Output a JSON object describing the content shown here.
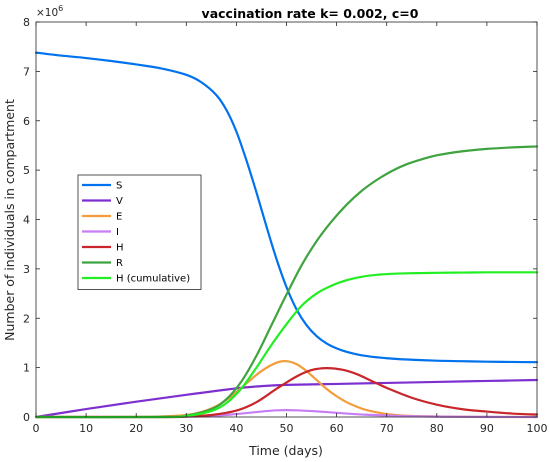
{
  "chart_data": {
    "type": "line",
    "title": "vaccination rate k= 0.002, c=0",
    "xlabel": "Time (days)",
    "ylabel": "Number of individuals in compartment",
    "y_exponent_label": "×10",
    "y_exponent_power": "6",
    "xlim": [
      0,
      100
    ],
    "ylim": [
      0,
      8
    ],
    "y_scale_factor": 1000000,
    "x_ticks": [
      0,
      10,
      20,
      30,
      40,
      50,
      60,
      70,
      80,
      90,
      100
    ],
    "y_ticks": [
      0,
      1,
      2,
      3,
      4,
      5,
      6,
      7,
      8
    ],
    "x_tick_labels": [
      "0",
      "10",
      "20",
      "30",
      "40",
      "50",
      "60",
      "70",
      "80",
      "90",
      "100"
    ],
    "y_tick_labels": [
      "0",
      "1",
      "2",
      "3",
      "4",
      "5",
      "6",
      "7",
      "8"
    ],
    "grid": false,
    "legend_position": "middle-left",
    "series": [
      {
        "name": "S",
        "color": "#0072EE",
        "x": [
          0,
          5,
          10,
          15,
          20,
          25,
          30,
          33,
          36,
          38,
          40,
          42,
          44,
          46,
          48,
          50,
          52,
          54,
          56,
          58,
          60,
          62,
          65,
          70,
          75,
          80,
          85,
          90,
          95,
          100
        ],
        "y": [
          7.38,
          7.32,
          7.27,
          7.21,
          7.14,
          7.06,
          6.93,
          6.78,
          6.52,
          6.22,
          5.78,
          5.2,
          4.55,
          3.86,
          3.2,
          2.63,
          2.18,
          1.86,
          1.64,
          1.49,
          1.39,
          1.32,
          1.25,
          1.19,
          1.16,
          1.14,
          1.13,
          1.12,
          1.115,
          1.11
        ]
      },
      {
        "name": "V",
        "color": "#7E2FD0",
        "x": [
          0,
          10,
          20,
          30,
          40,
          45,
          50,
          60,
          70,
          80,
          90,
          100
        ],
        "y": [
          0.0,
          0.16,
          0.31,
          0.45,
          0.58,
          0.625,
          0.65,
          0.67,
          0.69,
          0.71,
          0.73,
          0.75
        ]
      },
      {
        "name": "E",
        "color": "#F39C3C",
        "x": [
          0,
          20,
          25,
          30,
          33,
          36,
          39,
          42,
          45,
          48,
          50,
          52,
          54,
          56,
          58,
          60,
          62,
          64,
          66,
          70,
          75,
          80,
          90,
          100
        ],
        "y": [
          0.0,
          0.0,
          0.01,
          0.04,
          0.1,
          0.22,
          0.42,
          0.68,
          0.93,
          1.1,
          1.13,
          1.07,
          0.93,
          0.75,
          0.57,
          0.42,
          0.3,
          0.21,
          0.14,
          0.06,
          0.02,
          0.01,
          0.0,
          0.0
        ]
      },
      {
        "name": "I",
        "color": "#C77DF3",
        "x": [
          0,
          25,
          30,
          35,
          40,
          45,
          48,
          50,
          52,
          55,
          58,
          62,
          66,
          70,
          75,
          80,
          90,
          100
        ],
        "y": [
          0.0,
          0.0,
          0.005,
          0.02,
          0.06,
          0.11,
          0.135,
          0.14,
          0.135,
          0.12,
          0.1,
          0.07,
          0.045,
          0.03,
          0.015,
          0.008,
          0.002,
          0.0
        ]
      },
      {
        "name": "H",
        "color": "#C8262B",
        "x": [
          0,
          25,
          30,
          35,
          40,
          44,
          48,
          52,
          55,
          58,
          61,
          64,
          67,
          70,
          75,
          80,
          85,
          90,
          95,
          100
        ],
        "y": [
          0.0,
          0.0,
          0.01,
          0.04,
          0.13,
          0.3,
          0.57,
          0.82,
          0.95,
          0.99,
          0.96,
          0.87,
          0.73,
          0.59,
          0.39,
          0.25,
          0.16,
          0.11,
          0.07,
          0.05
        ]
      },
      {
        "name": "R",
        "color": "#3FA33F",
        "x": [
          0,
          25,
          30,
          35,
          38,
          41,
          44,
          47,
          50,
          53,
          56,
          59,
          62,
          65,
          68,
          71,
          74,
          77,
          80,
          85,
          90,
          95,
          100
        ],
        "y": [
          0.0,
          0.0,
          0.03,
          0.16,
          0.36,
          0.72,
          1.24,
          1.86,
          2.48,
          3.07,
          3.56,
          3.96,
          4.3,
          4.58,
          4.8,
          4.98,
          5.12,
          5.22,
          5.3,
          5.38,
          5.43,
          5.46,
          5.48
        ]
      },
      {
        "name": "H (cumulative)",
        "color": "#22EE22",
        "x": [
          0,
          25,
          30,
          35,
          38,
          41,
          44,
          47,
          50,
          53,
          56,
          59,
          62,
          65,
          68,
          71,
          74,
          77,
          80,
          85,
          90,
          95,
          100
        ],
        "y": [
          0.0,
          0.0,
          0.02,
          0.12,
          0.28,
          0.58,
          1.0,
          1.46,
          1.88,
          2.25,
          2.5,
          2.66,
          2.77,
          2.84,
          2.88,
          2.9,
          2.91,
          2.915,
          2.92,
          2.925,
          2.93,
          2.93,
          2.93
        ]
      }
    ]
  }
}
